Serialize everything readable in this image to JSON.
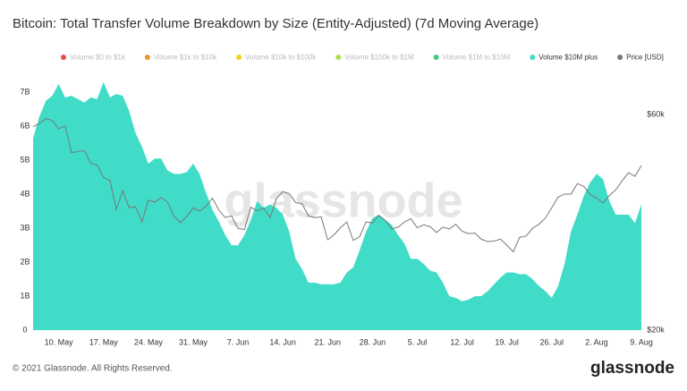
{
  "chart_data": {
    "type": "area",
    "title": "Bitcoin: Total Transfer Volume Breakdown by Size (Entity-Adjusted) (7d Moving Average)",
    "watermark": "glassnode",
    "copyright": "© 2021 Glassnode. All Rights Reserved.",
    "logo": "glassnode",
    "categories": [
      null,
      null,
      null,
      null,
      "10. May",
      null,
      null,
      null,
      null,
      null,
      null,
      "17. May",
      null,
      null,
      null,
      null,
      null,
      null,
      "24. May",
      null,
      null,
      null,
      null,
      null,
      null,
      "31. May",
      null,
      null,
      null,
      null,
      null,
      null,
      "7. Jun",
      null,
      null,
      null,
      null,
      null,
      null,
      "14. Jun",
      null,
      null,
      null,
      null,
      null,
      null,
      "21. Jun",
      null,
      null,
      null,
      null,
      null,
      null,
      "28. Jun",
      null,
      null,
      null,
      null,
      null,
      null,
      "5. Jul",
      null,
      null,
      null,
      null,
      null,
      null,
      "12. Jul",
      null,
      null,
      null,
      null,
      null,
      null,
      "19. Jul",
      null,
      null,
      null,
      null,
      null,
      null,
      "26. Jul",
      null,
      null,
      null,
      null,
      null,
      null,
      "2. Aug",
      null,
      null,
      null,
      null,
      null,
      null,
      "9. Aug"
    ],
    "hidden_series": [
      {
        "name": "Volume $0 to $1k",
        "color": "#e0504f"
      },
      {
        "name": "Volume $1k to $10k",
        "color": "#e8952f"
      },
      {
        "name": "Volume $10k to $100k",
        "color": "#f2cf1d"
      },
      {
        "name": "Volume $100k to $1M",
        "color": "#a9e34b"
      },
      {
        "name": "Volume $1M to $10M",
        "color": "#3ccf7a"
      }
    ],
    "series": [
      {
        "name": "Volume $10M plus",
        "color": "#40dcc8",
        "axis": "y",
        "values": [
          5650000000.0,
          6300000000.0,
          6750000000.0,
          6900000000.0,
          7250000000.0,
          6850000000.0,
          6900000000.0,
          6800000000.0,
          6700000000.0,
          6850000000.0,
          6800000000.0,
          7300000000.0,
          6850000000.0,
          6950000000.0,
          6900000000.0,
          6450000000.0,
          5800000000.0,
          5400000000.0,
          4900000000.0,
          5050000000.0,
          5050000000.0,
          4700000000.0,
          4600000000.0,
          4600000000.0,
          4650000000.0,
          4900000000.0,
          4600000000.0,
          4050000000.0,
          3550000000.0,
          3200000000.0,
          2800000000.0,
          2500000000.0,
          2500000000.0,
          2800000000.0,
          3250000000.0,
          3800000000.0,
          3600000000.0,
          3700000000.0,
          3600000000.0,
          3400000000.0,
          2900000000.0,
          2100000000.0,
          1800000000.0,
          1400000000.0,
          1400000000.0,
          1350000000.0,
          1350000000.0,
          1350000000.0,
          1400000000.0,
          1700000000.0,
          1850000000.0,
          2350000000.0,
          2900000000.0,
          3300000000.0,
          3400000000.0,
          3250000000.0,
          3100000000.0,
          2800000000.0,
          2550000000.0,
          2100000000.0,
          2100000000.0,
          1950000000.0,
          1750000000.0,
          1700000000.0,
          1400000000.0,
          1000000000.0,
          950000000.0,
          850000000.0,
          900000000.0,
          1000000000.0,
          1000000000.0,
          1150000000.0,
          1350000000.0,
          1550000000.0,
          1700000000.0,
          1700000000.0,
          1650000000.0,
          1650000000.0,
          1500000000.0,
          1300000000.0,
          1150000000.0,
          950000000.0,
          1300000000.0,
          1950000000.0,
          2900000000.0,
          3400000000.0,
          3950000000.0,
          4350000000.0,
          4600000000.0,
          4450000000.0,
          3800000000.0,
          3400000000.0,
          3400000000.0,
          3400000000.0,
          3150000000.0,
          3700000000.0
        ]
      },
      {
        "name": "Price [USD]",
        "color": "#777777",
        "axis": "y2",
        "values": [
          56400,
          57300,
          58800,
          58200,
          55800,
          56600,
          49400,
          49700,
          49900,
          46800,
          46400,
          43500,
          42900,
          37000,
          40700,
          37300,
          37500,
          34700,
          38800,
          38400,
          39300,
          38400,
          35700,
          34600,
          35700,
          37300,
          36700,
          37600,
          39200,
          36900,
          35500,
          35800,
          33600,
          33400,
          37400,
          36700,
          37300,
          35500,
          39100,
          40500,
          40100,
          38300,
          38100,
          35800,
          35500,
          35600,
          31700,
          32500,
          33700,
          34700,
          31600,
          32200,
          34700,
          34500,
          35900,
          35000,
          33500,
          33800,
          34700,
          35300,
          33700,
          34200,
          33900,
          32900,
          33800,
          33500,
          34300,
          33100,
          32700,
          32800,
          31800,
          31400,
          31500,
          31800,
          30800,
          29800,
          32100,
          32300,
          33600,
          34300,
          35400,
          37300,
          39400,
          40000,
          40000,
          42200,
          41600,
          39900,
          39200,
          38200,
          39700,
          40900,
          42800,
          44600,
          43800,
          46300
        ]
      }
    ],
    "ylim": [
      0,
      7400000000.0
    ],
    "yticks": [
      0,
      {
        "value": 1000000000.0,
        "label": "1B"
      },
      {
        "value": 2000000000.0,
        "label": "2B"
      },
      {
        "value": 3000000000.0,
        "label": "3B"
      },
      {
        "value": 4000000000.0,
        "label": "4B"
      },
      {
        "value": 5000000000.0,
        "label": "5B"
      },
      {
        "value": 6000000000.0,
        "label": "6B"
      },
      {
        "value": 7000000000.0,
        "label": "7B"
      }
    ],
    "y2lim": [
      20000,
      72000
    ],
    "y2ticks": [
      {
        "value": 20000,
        "label": "$20k"
      },
      {
        "value": 60000,
        "label": "$60k"
      }
    ],
    "y2_log": true,
    "grid": false
  }
}
